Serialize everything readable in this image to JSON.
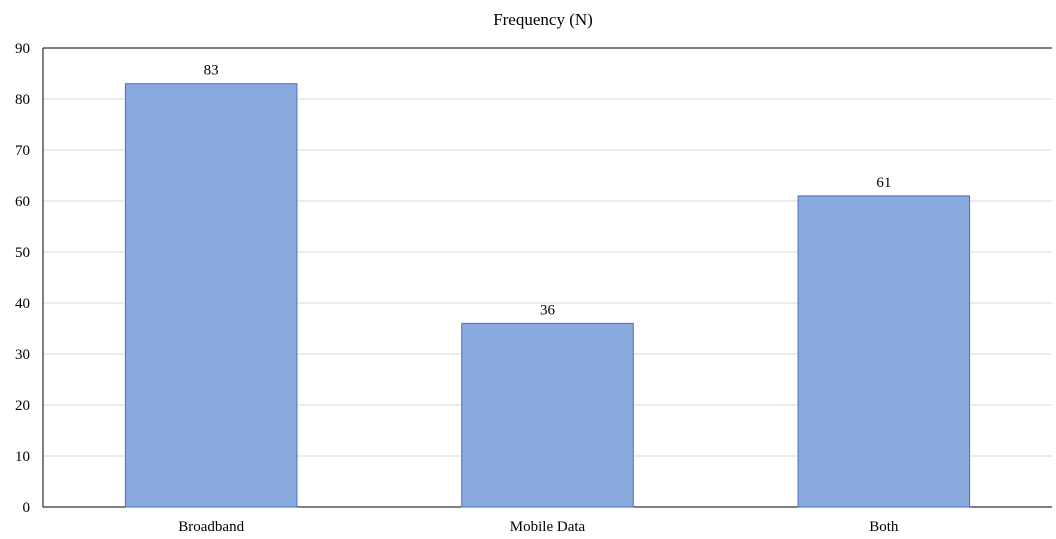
{
  "chart_data": {
    "type": "bar",
    "title": "Frequency (N)",
    "categories": [
      "Broadband",
      "Mobile Data",
      "Both"
    ],
    "values": [
      83,
      36,
      61
    ],
    "data_labels": [
      "83",
      "36",
      "61"
    ],
    "xlabel": "",
    "ylabel": "",
    "ylim": [
      0,
      90
    ],
    "yticks": [
      0,
      10,
      20,
      30,
      40,
      50,
      60,
      70,
      80,
      90
    ],
    "ytick_labels": [
      "0",
      "10",
      "20",
      "30",
      "40",
      "50",
      "60",
      "70",
      "80",
      "90"
    ],
    "grid": true,
    "legend": "none",
    "colors": {
      "bar_fill": "#8AA9DC",
      "bar_stroke": "#4472C4",
      "grid": "#D9D9D9",
      "axis": "#000000"
    }
  }
}
